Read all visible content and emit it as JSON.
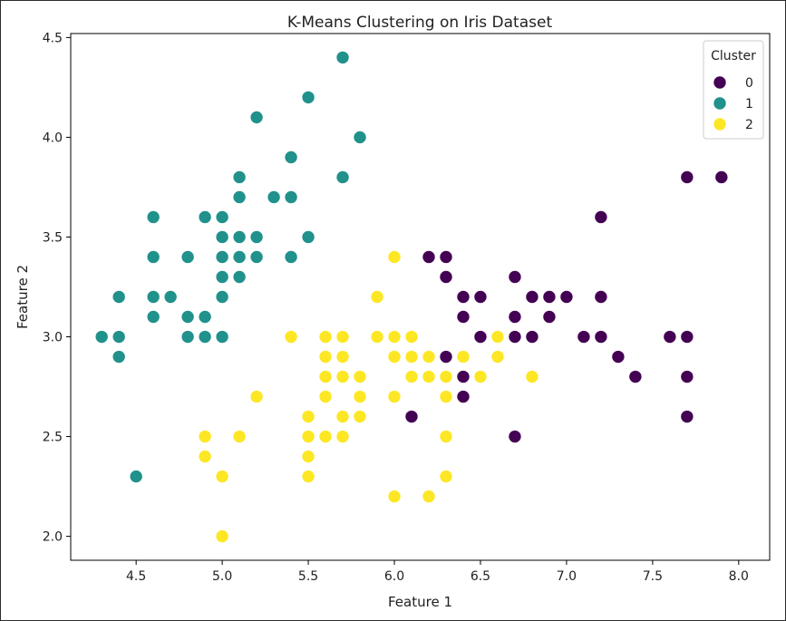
{
  "chart_data": {
    "type": "scatter",
    "title": "K-Means Clustering on Iris Dataset",
    "xlabel": "Feature 1",
    "ylabel": "Feature 2",
    "xlim": [
      4.12,
      8.18
    ],
    "ylim": [
      1.88,
      4.52
    ],
    "xticks": [
      4.5,
      5.0,
      5.5,
      6.0,
      6.5,
      7.0,
      7.5,
      8.0
    ],
    "yticks": [
      2.0,
      2.5,
      3.0,
      3.5,
      4.0,
      4.5
    ],
    "xtick_labels": [
      "4.5",
      "5.0",
      "5.5",
      "6.0",
      "6.5",
      "7.0",
      "7.5",
      "8.0"
    ],
    "ytick_labels": [
      "2.0",
      "2.5",
      "3.0",
      "3.5",
      "4.0",
      "4.5"
    ],
    "grid": false,
    "legend": {
      "title": "Cluster",
      "placement": "top-right",
      "entries": [
        "0",
        "1",
        "2"
      ]
    },
    "series": [
      {
        "name": "0",
        "color": "#440154",
        "points": [
          [
            6.2,
            3.4
          ],
          [
            6.3,
            3.4
          ],
          [
            6.3,
            3.3
          ],
          [
            6.4,
            3.2
          ],
          [
            6.5,
            3.2
          ],
          [
            6.4,
            3.1
          ],
          [
            6.5,
            3.0
          ],
          [
            6.3,
            2.9
          ],
          [
            6.4,
            2.8
          ],
          [
            6.4,
            2.7
          ],
          [
            6.1,
            2.6
          ],
          [
            6.7,
            2.5
          ],
          [
            6.7,
            3.3
          ],
          [
            6.7,
            3.1
          ],
          [
            6.7,
            3.0
          ],
          [
            6.8,
            3.2
          ],
          [
            6.8,
            3.0
          ],
          [
            6.9,
            3.2
          ],
          [
            6.9,
            3.1
          ],
          [
            7.0,
            3.2
          ],
          [
            7.1,
            3.0
          ],
          [
            7.2,
            3.6
          ],
          [
            7.2,
            3.2
          ],
          [
            7.2,
            3.0
          ],
          [
            7.3,
            2.9
          ],
          [
            7.4,
            2.8
          ],
          [
            7.6,
            3.0
          ],
          [
            7.7,
            3.8
          ],
          [
            7.7,
            3.0
          ],
          [
            7.7,
            2.8
          ],
          [
            7.7,
            2.6
          ],
          [
            7.9,
            3.8
          ]
        ]
      },
      {
        "name": "1",
        "color": "#21918c",
        "points": [
          [
            4.3,
            3.0
          ],
          [
            4.4,
            3.2
          ],
          [
            4.4,
            3.0
          ],
          [
            4.4,
            2.9
          ],
          [
            4.5,
            2.3
          ],
          [
            4.6,
            3.6
          ],
          [
            4.6,
            3.4
          ],
          [
            4.6,
            3.2
          ],
          [
            4.6,
            3.1
          ],
          [
            4.7,
            3.2
          ],
          [
            4.8,
            3.4
          ],
          [
            4.8,
            3.1
          ],
          [
            4.8,
            3.0
          ],
          [
            4.9,
            3.6
          ],
          [
            4.9,
            3.1
          ],
          [
            4.9,
            3.0
          ],
          [
            5.0,
            3.6
          ],
          [
            5.0,
            3.5
          ],
          [
            5.0,
            3.4
          ],
          [
            5.0,
            3.3
          ],
          [
            5.0,
            3.2
          ],
          [
            5.0,
            3.0
          ],
          [
            5.1,
            3.8
          ],
          [
            5.1,
            3.7
          ],
          [
            5.1,
            3.5
          ],
          [
            5.1,
            3.4
          ],
          [
            5.1,
            3.3
          ],
          [
            5.2,
            4.1
          ],
          [
            5.2,
            3.5
          ],
          [
            5.2,
            3.4
          ],
          [
            5.3,
            3.7
          ],
          [
            5.4,
            3.9
          ],
          [
            5.4,
            3.7
          ],
          [
            5.4,
            3.4
          ],
          [
            5.5,
            4.2
          ],
          [
            5.5,
            3.5
          ],
          [
            5.7,
            4.4
          ],
          [
            5.7,
            3.8
          ],
          [
            5.8,
            4.0
          ]
        ]
      },
      {
        "name": "2",
        "color": "#fde725",
        "points": [
          [
            4.9,
            2.5
          ],
          [
            4.9,
            2.4
          ],
          [
            5.0,
            2.3
          ],
          [
            5.0,
            2.0
          ],
          [
            5.1,
            2.5
          ],
          [
            5.2,
            2.7
          ],
          [
            5.4,
            3.0
          ],
          [
            5.5,
            2.6
          ],
          [
            5.5,
            2.5
          ],
          [
            5.5,
            2.4
          ],
          [
            5.5,
            2.3
          ],
          [
            5.6,
            3.0
          ],
          [
            5.6,
            2.9
          ],
          [
            5.6,
            2.8
          ],
          [
            5.6,
            2.7
          ],
          [
            5.6,
            2.5
          ],
          [
            5.7,
            3.0
          ],
          [
            5.7,
            2.9
          ],
          [
            5.7,
            2.8
          ],
          [
            5.7,
            2.6
          ],
          [
            5.7,
            2.5
          ],
          [
            5.8,
            2.8
          ],
          [
            5.8,
            2.7
          ],
          [
            5.8,
            2.6
          ],
          [
            5.9,
            3.2
          ],
          [
            5.9,
            3.0
          ],
          [
            6.0,
            3.4
          ],
          [
            6.0,
            3.0
          ],
          [
            6.0,
            2.9
          ],
          [
            6.0,
            2.7
          ],
          [
            6.0,
            2.2
          ],
          [
            6.1,
            3.0
          ],
          [
            6.1,
            2.9
          ],
          [
            6.1,
            2.8
          ],
          [
            6.2,
            2.9
          ],
          [
            6.2,
            2.8
          ],
          [
            6.2,
            2.2
          ],
          [
            6.3,
            2.8
          ],
          [
            6.3,
            2.7
          ],
          [
            6.3,
            2.5
          ],
          [
            6.3,
            2.3
          ],
          [
            6.4,
            2.9
          ],
          [
            6.5,
            2.8
          ],
          [
            6.6,
            3.0
          ],
          [
            6.6,
            2.9
          ],
          [
            6.8,
            2.8
          ]
        ]
      }
    ]
  }
}
